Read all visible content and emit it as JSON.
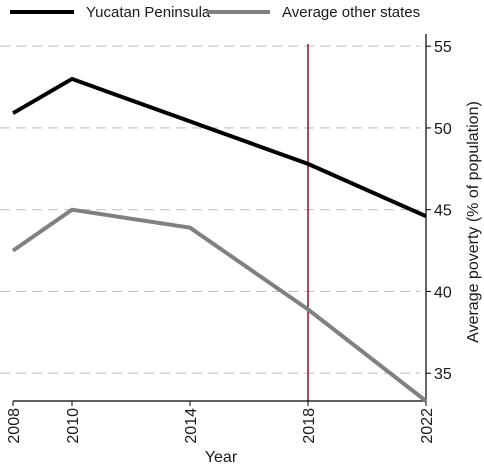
{
  "chart_data": {
    "type": "line",
    "title": "",
    "xlabel": "Year",
    "ylabel": "Average poverty (% of population)",
    "x": [
      2008,
      2010,
      2014,
      2018,
      2022
    ],
    "x_ticks": [
      "2008",
      "2010",
      "2014",
      "2018",
      "2022"
    ],
    "y_ticks": [
      "35",
      "40",
      "45",
      "50",
      "55"
    ],
    "xlim": [
      2008,
      2022
    ],
    "ylim": [
      33.3,
      55.5
    ],
    "y_axis_side": "right",
    "grid": "horizontal dashed",
    "legend_position": "top",
    "reference_line": {
      "x": 2018,
      "color": "#9b1b3a"
    },
    "series": [
      {
        "name": "Yucatan Peninsula",
        "color": "#000000",
        "values": [
          50.9,
          53.0,
          50.4,
          47.8,
          44.6
        ]
      },
      {
        "name": "Average other states",
        "color": "#808080",
        "values": [
          42.5,
          45.0,
          43.9,
          38.9,
          33.3
        ]
      }
    ]
  }
}
